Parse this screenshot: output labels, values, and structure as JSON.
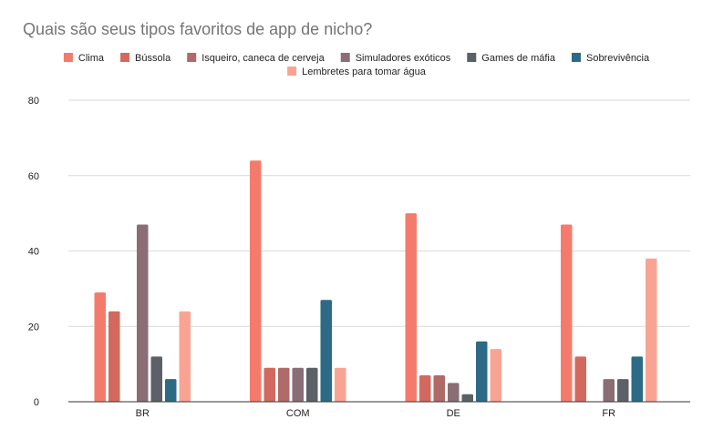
{
  "chart_data": {
    "type": "bar",
    "title": "Quais são seus tipos favoritos de app de nicho?",
    "xlabel": "",
    "ylabel": "",
    "ylim": [
      0,
      80
    ],
    "yticks": [
      "0",
      "20",
      "40",
      "60",
      "80"
    ],
    "grid": true,
    "legend_position": "top",
    "categories": [
      "BR",
      "COM",
      "DE",
      "FR"
    ],
    "series": [
      {
        "name": "Clima",
        "color": "#f47b6c",
        "values": [
          29,
          64,
          50,
          47
        ]
      },
      {
        "name": "Bússola",
        "color": "#d2695f",
        "values": [
          24,
          9,
          7,
          12
        ]
      },
      {
        "name": "Isqueiro, caneca de cerveja",
        "color": "#b06a68",
        "values": [
          0,
          9,
          7,
          0
        ]
      },
      {
        "name": "Simuladores exóticos",
        "color": "#8a6d75",
        "values": [
          47,
          9,
          5,
          6
        ]
      },
      {
        "name": "Games de máfia",
        "color": "#5c6168",
        "values": [
          12,
          9,
          2,
          6
        ]
      },
      {
        "name": "Sobrevivência",
        "color": "#2d6a86",
        "values": [
          6,
          27,
          16,
          12
        ]
      },
      {
        "name": "Lembretes para tomar água",
        "color": "#f9a493",
        "values": [
          24,
          9,
          14,
          38
        ]
      }
    ]
  }
}
